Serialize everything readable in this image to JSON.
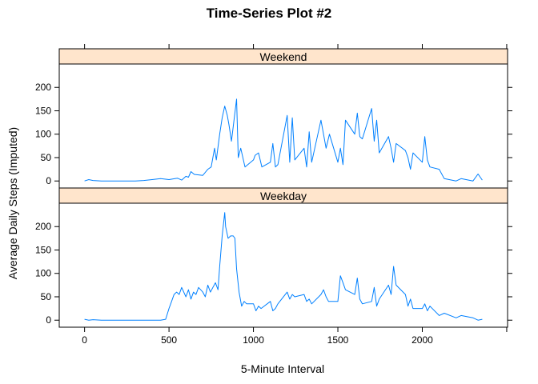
{
  "chart_data": {
    "type": "line",
    "title": "Time-Series Plot #2",
    "xlabel": "5-Minute Interval",
    "ylabel": "Average Daily Steps (Imputed)",
    "xlim": [
      -150,
      2505
    ],
    "ylim": [
      -15,
      250
    ],
    "x_ticks": [
      0,
      500,
      1000,
      1500,
      2000
    ],
    "y_ticks": [
      0,
      50,
      100,
      150,
      200
    ],
    "grid": false,
    "line_color": "#0080ff",
    "strip_color": "#ffe5cc",
    "panels": [
      {
        "name": "Weekend",
        "x": [
          0,
          25,
          50,
          100,
          150,
          200,
          250,
          300,
          350,
          400,
          450,
          500,
          550,
          575,
          600,
          615,
          630,
          650,
          700,
          730,
          750,
          770,
          780,
          800,
          815,
          830,
          845,
          855,
          870,
          885,
          900,
          910,
          925,
          950,
          1000,
          1010,
          1030,
          1050,
          1100,
          1115,
          1130,
          1145,
          1200,
          1215,
          1230,
          1245,
          1300,
          1315,
          1330,
          1345,
          1400,
          1415,
          1430,
          1450,
          1500,
          1515,
          1530,
          1545,
          1600,
          1615,
          1630,
          1645,
          1700,
          1715,
          1730,
          1745,
          1800,
          1815,
          1830,
          1845,
          1900,
          1915,
          1930,
          1945,
          2000,
          2015,
          2030,
          2045,
          2100,
          2130,
          2200,
          2230,
          2300,
          2330,
          2355
        ],
        "values": [
          0,
          3,
          1,
          0,
          0,
          0,
          0,
          0,
          1,
          3,
          5,
          3,
          6,
          2,
          10,
          8,
          20,
          14,
          12,
          25,
          30,
          70,
          45,
          100,
          135,
          160,
          140,
          120,
          85,
          130,
          175,
          50,
          70,
          30,
          45,
          55,
          60,
          30,
          40,
          80,
          30,
          35,
          140,
          40,
          135,
          45,
          70,
          30,
          105,
          40,
          130,
          100,
          70,
          100,
          40,
          70,
          35,
          130,
          100,
          145,
          95,
          90,
          155,
          85,
          130,
          60,
          95,
          70,
          40,
          80,
          65,
          50,
          25,
          60,
          40,
          95,
          45,
          30,
          25,
          5,
          0,
          5,
          0,
          15,
          2
        ]
      },
      {
        "name": "Weekday",
        "x": [
          0,
          25,
          50,
          100,
          150,
          200,
          250,
          300,
          350,
          400,
          450,
          480,
          500,
          515,
          530,
          545,
          560,
          575,
          600,
          615,
          630,
          645,
          660,
          675,
          700,
          715,
          730,
          745,
          760,
          775,
          790,
          800,
          815,
          830,
          835,
          850,
          865,
          880,
          890,
          900,
          915,
          930,
          945,
          960,
          1000,
          1015,
          1030,
          1045,
          1100,
          1115,
          1130,
          1145,
          1200,
          1215,
          1230,
          1245,
          1300,
          1315,
          1330,
          1345,
          1400,
          1415,
          1430,
          1445,
          1500,
          1515,
          1530,
          1545,
          1600,
          1615,
          1630,
          1645,
          1700,
          1715,
          1730,
          1745,
          1800,
          1815,
          1830,
          1845,
          1900,
          1915,
          1930,
          1945,
          2000,
          2015,
          2030,
          2045,
          2100,
          2130,
          2200,
          2230,
          2300,
          2330,
          2355
        ],
        "values": [
          2,
          0,
          1,
          0,
          0,
          0,
          0,
          0,
          0,
          0,
          0,
          2,
          25,
          40,
          55,
          60,
          55,
          70,
          50,
          65,
          45,
          60,
          55,
          70,
          60,
          50,
          75,
          60,
          70,
          80,
          65,
          115,
          180,
          230,
          200,
          175,
          180,
          180,
          175,
          110,
          60,
          30,
          40,
          35,
          35,
          20,
          30,
          25,
          40,
          20,
          25,
          35,
          60,
          45,
          55,
          50,
          55,
          40,
          45,
          35,
          55,
          65,
          50,
          40,
          40,
          95,
          80,
          65,
          55,
          90,
          45,
          35,
          40,
          70,
          30,
          45,
          75,
          55,
          115,
          75,
          55,
          30,
          45,
          25,
          25,
          35,
          20,
          30,
          10,
          15,
          5,
          10,
          5,
          0,
          2
        ]
      }
    ]
  }
}
